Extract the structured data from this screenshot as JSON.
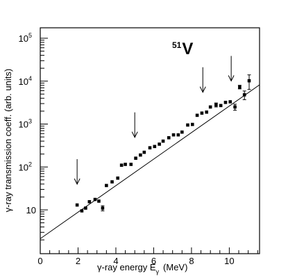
{
  "chart_data": {
    "type": "scatter",
    "title": "",
    "annotation": {
      "mass_number": "51",
      "element": "V"
    },
    "xlabel": {
      "main": "γ-ray energy E",
      "subscript": "γ",
      "unit": "(MeV)"
    },
    "ylabel": "γ-ray transmission coeff. (arb. units)",
    "xlim": [
      0,
      11.6
    ],
    "ylim": [
      1.5,
      150000
    ],
    "y_scale": "log",
    "grid": false,
    "legend": "none",
    "x_ticks": [
      0,
      2,
      4,
      6,
      8,
      10
    ],
    "x_tick_labels": [
      "0",
      "2",
      "4",
      "6",
      "8",
      "10"
    ],
    "y_ticks": [
      10,
      100,
      1000,
      10000,
      100000
    ],
    "y_tick_labels": [
      {
        "base": "10",
        "exp": ""
      },
      {
        "base": "10",
        "exp": "2"
      },
      {
        "base": "10",
        "exp": "3"
      },
      {
        "base": "10",
        "exp": "4"
      },
      {
        "base": "10",
        "exp": "5"
      }
    ],
    "series": [
      {
        "x": [
          1.95,
          2.2,
          2.4,
          2.6,
          2.9,
          3.1,
          3.3,
          3.5,
          3.8,
          4.1,
          4.3,
          4.5,
          4.8,
          5.05,
          5.3,
          5.5,
          5.8,
          6.05,
          6.3,
          6.5,
          6.8,
          7.05,
          7.3,
          7.5,
          7.8,
          8.05,
          8.3,
          8.55,
          8.8,
          9.0,
          9.3,
          9.55,
          9.8,
          10.05,
          10.3,
          10.55,
          10.8,
          11.05
        ],
        "y": [
          13,
          9.5,
          11,
          15.5,
          17.5,
          16,
          11,
          37,
          45,
          55,
          110,
          115,
          115,
          160,
          190,
          220,
          280,
          300,
          340,
          400,
          480,
          560,
          560,
          650,
          950,
          980,
          1600,
          1800,
          1900,
          2500,
          2800,
          2700,
          3200,
          3300,
          2500,
          7300,
          4800,
          10200
        ],
        "yerr": [
          0.8,
          0.8,
          0.8,
          1,
          1,
          1,
          1.5,
          2,
          2.5,
          3,
          5,
          5,
          6,
          6,
          7,
          8,
          10,
          11,
          12,
          14,
          16,
          20,
          40,
          25,
          35,
          35,
          120,
          140,
          140,
          180,
          300,
          220,
          260,
          300,
          400,
          700,
          1100,
          3800
        ]
      }
    ],
    "fit_line": {
      "x": [
        -0.2,
        11.6
      ],
      "y": [
        1.85,
        8200
      ]
    },
    "arrows_at_x": [
      1.95,
      5.0,
      8.6,
      10.1
    ]
  }
}
